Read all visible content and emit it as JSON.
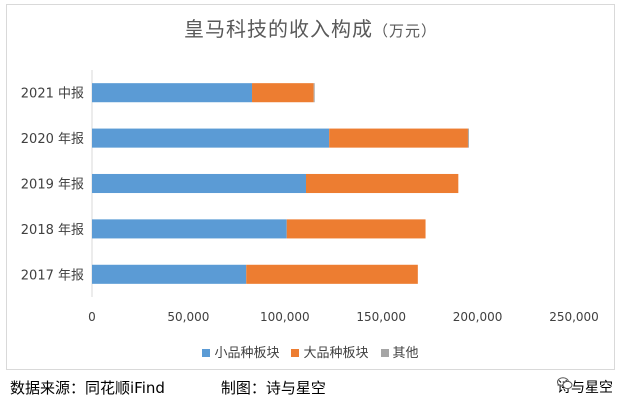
{
  "chart_data": {
    "type": "bar",
    "orientation": "horizontal",
    "stacked": true,
    "title": "皇马科技的收入构成",
    "title_unit": "（万元）",
    "categories": [
      "2017 年报",
      "2018 年报",
      "2019 年报",
      "2020 年报",
      "2021 中报"
    ],
    "series": [
      {
        "name": "小品种板块",
        "color": "#5b9bd5",
        "values": [
          80000,
          101000,
          111000,
          123000,
          83000
        ]
      },
      {
        "name": "大品种板块",
        "color": "#ed7d31",
        "values": [
          89000,
          72000,
          79000,
          72000,
          32000
        ]
      },
      {
        "name": "其他",
        "color": "#a5a5a5",
        "values": [
          0,
          0,
          0,
          500,
          500
        ]
      }
    ],
    "xlim": [
      0,
      250000
    ],
    "xticks": [
      "0",
      "50,000",
      "100,000",
      "150,000",
      "200,000",
      "250,000"
    ],
    "grid": false,
    "legend": "bottom"
  },
  "footer": {
    "source": "数据来源：同花顺iFind",
    "author": "制图：诗与星空"
  },
  "watermark": {
    "icon": "wechat-icon",
    "text": "诗与星空"
  }
}
